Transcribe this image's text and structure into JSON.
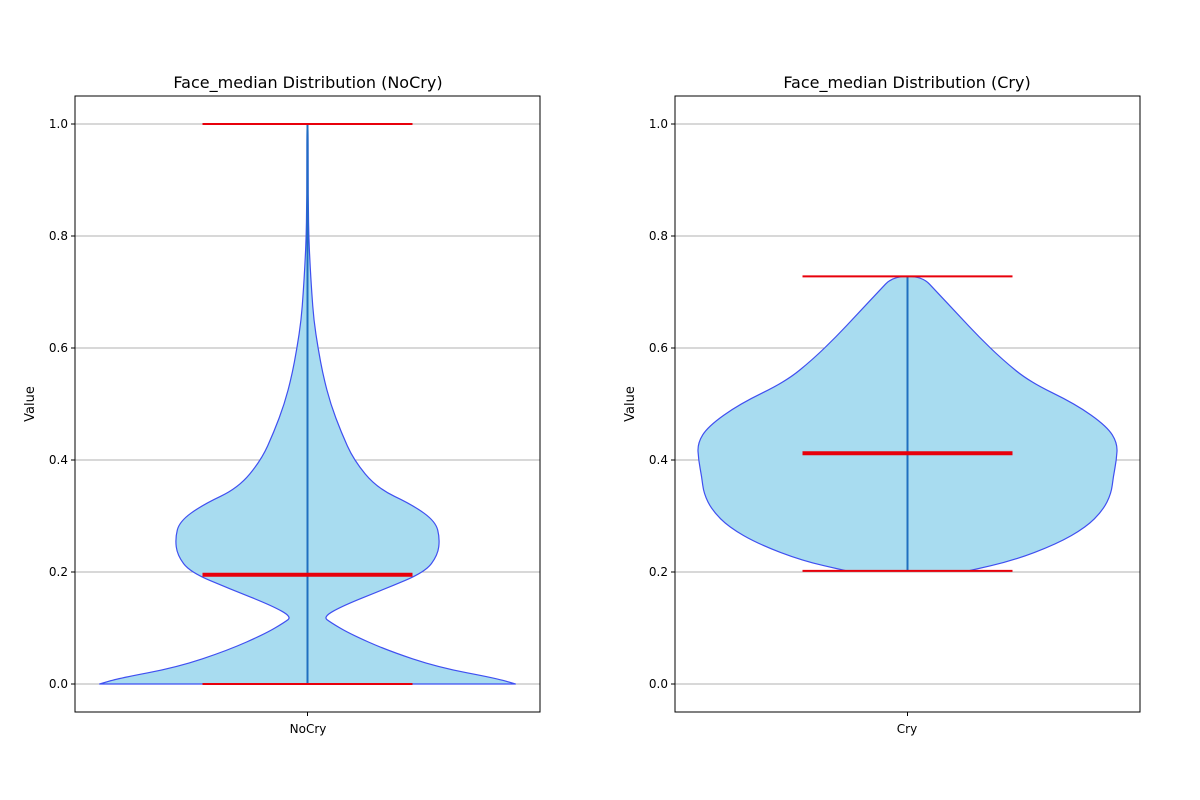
{
  "chart_data": [
    {
      "type": "violin",
      "title": "Face_median Distribution (NoCry)",
      "ylabel": "Value",
      "category": "NoCry",
      "ylim": [
        -0.05,
        1.05
      ],
      "yticks": [
        "0.0",
        "0.2",
        "0.4",
        "0.6",
        "0.8",
        "1.0"
      ],
      "grid": "y",
      "stats": {
        "min": 0.0,
        "median": 0.195,
        "max": 1.0
      },
      "density_profile": [
        [
          0.0,
          0.99
        ],
        [
          0.01,
          0.9
        ],
        [
          0.03,
          0.62
        ],
        [
          0.06,
          0.38
        ],
        [
          0.09,
          0.2
        ],
        [
          0.11,
          0.11
        ],
        [
          0.12,
          0.075
        ],
        [
          0.14,
          0.17
        ],
        [
          0.17,
          0.37
        ],
        [
          0.2,
          0.56
        ],
        [
          0.23,
          0.62
        ],
        [
          0.26,
          0.63
        ],
        [
          0.29,
          0.61
        ],
        [
          0.32,
          0.5
        ],
        [
          0.35,
          0.33
        ],
        [
          0.4,
          0.22
        ],
        [
          0.45,
          0.16
        ],
        [
          0.5,
          0.11
        ],
        [
          0.55,
          0.075
        ],
        [
          0.6,
          0.05
        ],
        [
          0.65,
          0.03
        ],
        [
          0.7,
          0.02
        ],
        [
          0.75,
          0.012
        ],
        [
          0.8,
          0.006
        ],
        [
          0.85,
          0.004
        ],
        [
          0.9,
          0.003
        ],
        [
          1.0,
          0.003
        ]
      ],
      "colors": {
        "body": "#a8dcf0",
        "outline": "#3f4ff0",
        "median": "#e8000b",
        "extrema": "#e8000b",
        "center_line": "#1f6fc0"
      }
    },
    {
      "type": "violin",
      "title": "Face_median Distribution (Cry)",
      "ylabel": "Value",
      "category": "Cry",
      "ylim": [
        -0.05,
        1.05
      ],
      "yticks": [
        "0.0",
        "0.2",
        "0.4",
        "0.6",
        "0.8",
        "1.0"
      ],
      "grid": "y",
      "stats": {
        "min": 0.202,
        "median": 0.412,
        "max": 0.728
      },
      "density_profile": [
        [
          0.202,
          0.29
        ],
        [
          0.22,
          0.5
        ],
        [
          0.25,
          0.71
        ],
        [
          0.28,
          0.85
        ],
        [
          0.31,
          0.93
        ],
        [
          0.34,
          0.97
        ],
        [
          0.37,
          0.98
        ],
        [
          0.4,
          0.995
        ],
        [
          0.43,
          1.0
        ],
        [
          0.46,
          0.95
        ],
        [
          0.5,
          0.8
        ],
        [
          0.54,
          0.58
        ],
        [
          0.58,
          0.45
        ],
        [
          0.62,
          0.34
        ],
        [
          0.66,
          0.24
        ],
        [
          0.7,
          0.14
        ],
        [
          0.728,
          0.07
        ]
      ],
      "colors": {
        "body": "#a8dcf0",
        "outline": "#3f4ff0",
        "median": "#e8000b",
        "extrema": "#e8000b",
        "center_line": "#1f6fc0"
      }
    }
  ]
}
